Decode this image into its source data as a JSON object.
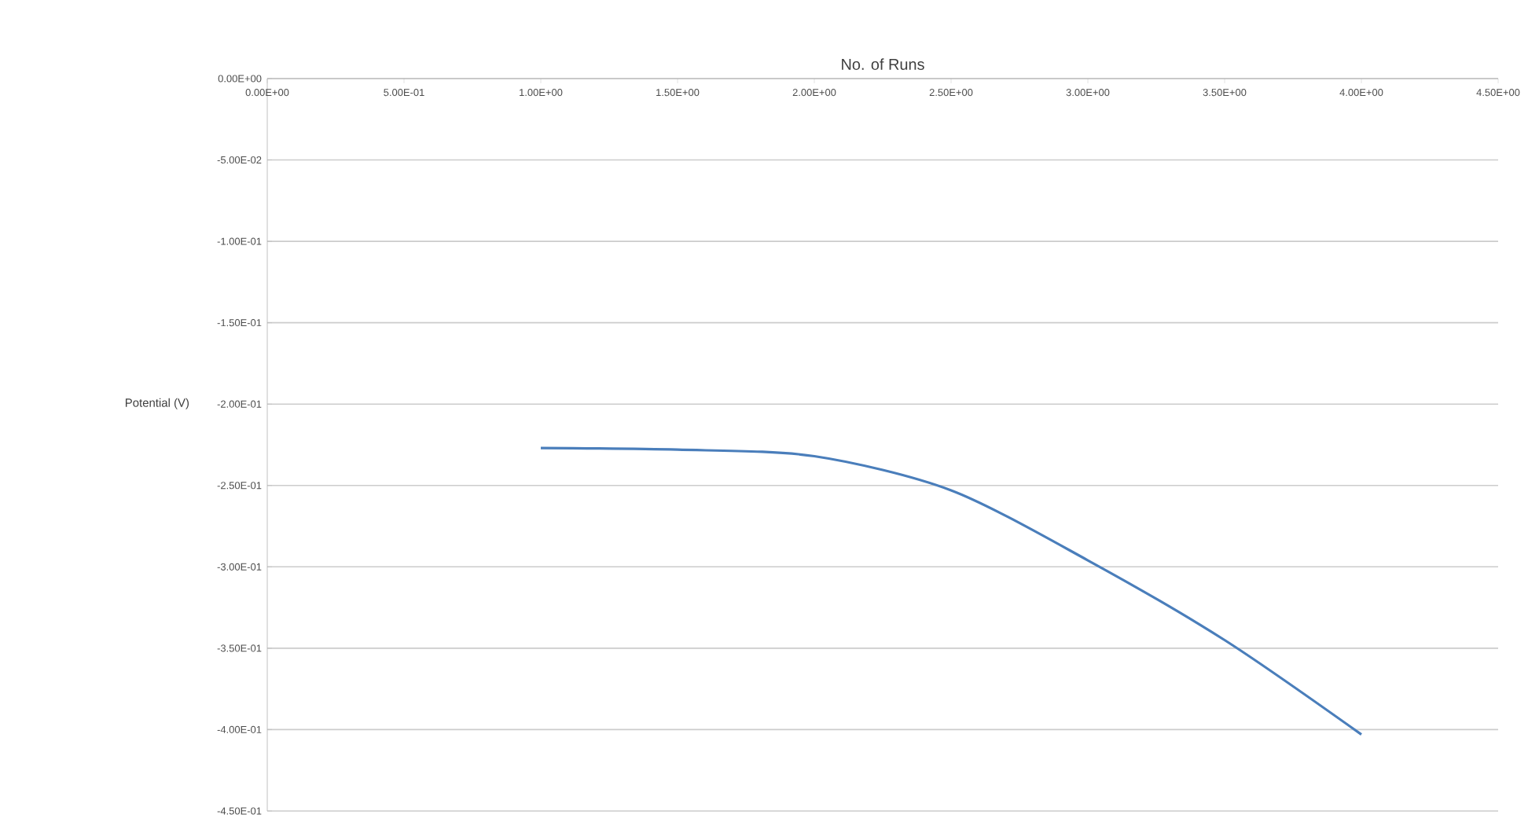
{
  "chart_data": {
    "type": "line",
    "xlabel": "No. of Runs",
    "ylabel": "Potential (V)",
    "x": [
      1,
      1.5,
      2,
      2.5,
      3,
      3.5,
      4
    ],
    "series": [
      {
        "color": "#4a7ebb",
        "values": [
          -0.227,
          -0.228,
          -0.232,
          -0.253,
          -0.296,
          -0.345,
          -0.403
        ]
      }
    ],
    "xlim": [
      0,
      4.5
    ],
    "ylim": [
      -0.45,
      0
    ],
    "xticks": [
      {
        "value": 0,
        "label": "0.00E+00"
      },
      {
        "value": 0.5,
        "label": "5.00E-01"
      },
      {
        "value": 1,
        "label": "1.00E+00"
      },
      {
        "value": 1.5,
        "label": "1.50E+00"
      },
      {
        "value": 2,
        "label": "2.00E+00"
      },
      {
        "value": 2.5,
        "label": "2.50E+00"
      },
      {
        "value": 3,
        "label": "3.00E+00"
      },
      {
        "value": 3.5,
        "label": "3.50E+00"
      },
      {
        "value": 4,
        "label": "4.00E+00"
      },
      {
        "value": 4.5,
        "label": "4.50E+00"
      }
    ],
    "yticks": [
      {
        "value": 0,
        "label": "0.00E+00"
      },
      {
        "value": -0.05,
        "label": "-5.00E-02"
      },
      {
        "value": -0.1,
        "label": "-1.00E-01"
      },
      {
        "value": -0.15,
        "label": "-1.50E-01"
      },
      {
        "value": -0.2,
        "label": "-2.00E-01"
      },
      {
        "value": -0.25,
        "label": "-2.50E-01"
      },
      {
        "value": -0.3,
        "label": "-3.00E-01"
      },
      {
        "value": -0.35,
        "label": "-3.50E-01"
      },
      {
        "value": -0.4,
        "label": "-4.00E-01"
      },
      {
        "value": -0.45,
        "label": "-4.50E-01"
      }
    ],
    "grid": "y",
    "marker": "none",
    "line_style": "solid"
  }
}
